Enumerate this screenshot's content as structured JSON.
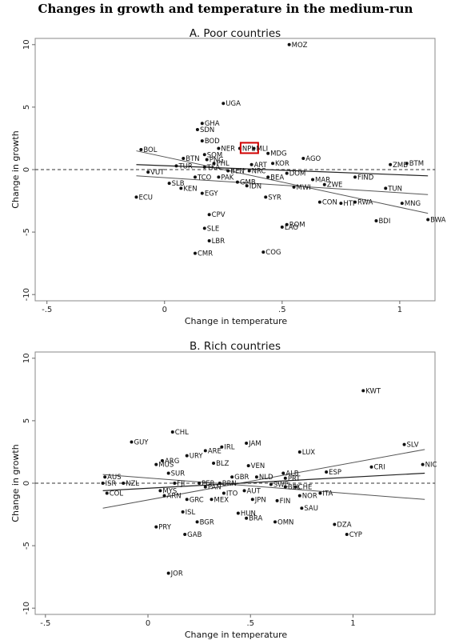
{
  "figure_title": "Changes in growth and temperature in the medium-run",
  "colors": {
    "highlight": "#d00000",
    "frame": "#888888",
    "points": "#111111",
    "fit_line": "#555555"
  },
  "chart_data": [
    {
      "type": "scatter",
      "title": "A. Poor countries",
      "xlabel": "Change in temperature",
      "ylabel": "Change in growth",
      "xlim": [
        -0.55,
        1.15
      ],
      "ylim": [
        -10.5,
        10.5
      ],
      "xticks": [
        -0.5,
        0,
        0.5,
        1
      ],
      "xtick_labels": [
        "-.5",
        "0",
        ".5",
        "1"
      ],
      "yticks": [
        10,
        5,
        0,
        -5,
        -10
      ],
      "highlight": "NPL",
      "fit_lines": [
        {
          "x": [
            -0.12,
            1.12
          ],
          "y": [
            1.5,
            -3.5
          ]
        },
        {
          "x": [
            -0.12,
            1.12
          ],
          "y": [
            0.4,
            -0.5
          ]
        },
        {
          "x": [
            -0.12,
            1.12
          ],
          "y": [
            -0.5,
            -2.0
          ]
        }
      ],
      "points": [
        {
          "label": "MOZ",
          "x": 0.53,
          "y": 10.0
        },
        {
          "label": "UGA",
          "x": 0.25,
          "y": 5.3
        },
        {
          "label": "GHA",
          "x": 0.16,
          "y": 3.7
        },
        {
          "label": "SDN",
          "x": 0.14,
          "y": 3.2
        },
        {
          "label": "BOD",
          "x": 0.16,
          "y": 2.3
        },
        {
          "label": "NER",
          "x": 0.23,
          "y": 1.7
        },
        {
          "label": "NPL",
          "x": 0.32,
          "y": 1.7
        },
        {
          "label": "MLI",
          "x": 0.38,
          "y": 1.7
        },
        {
          "label": "BOL",
          "x": -0.1,
          "y": 1.6
        },
        {
          "label": "MDG",
          "x": 0.44,
          "y": 1.3
        },
        {
          "label": "SOM",
          "x": 0.17,
          "y": 1.2
        },
        {
          "label": "AGO",
          "x": 0.59,
          "y": 0.9
        },
        {
          "label": "BTN",
          "x": 0.08,
          "y": 0.9
        },
        {
          "label": "PNG",
          "x": 0.18,
          "y": 0.8
        },
        {
          "label": "PHL",
          "x": 0.21,
          "y": 0.5
        },
        {
          "label": "ART",
          "x": 0.37,
          "y": 0.4
        },
        {
          "label": "KOR",
          "x": 0.46,
          "y": 0.5
        },
        {
          "label": "TUR",
          "x": 0.05,
          "y": 0.3
        },
        {
          "label": "ZMB",
          "x": 0.96,
          "y": 0.4
        },
        {
          "label": "BTM",
          "x": 1.03,
          "y": 0.5
        },
        {
          "label": "TKA",
          "x": 0.17,
          "y": 0.2
        },
        {
          "label": "VUT",
          "x": -0.07,
          "y": -0.2
        },
        {
          "label": "BEN",
          "x": 0.27,
          "y": -0.1
        },
        {
          "label": "NRC",
          "x": 0.36,
          "y": -0.1
        },
        {
          "label": "DOM",
          "x": 0.52,
          "y": -0.3
        },
        {
          "label": "TCO",
          "x": 0.13,
          "y": -0.6
        },
        {
          "label": "PAK",
          "x": 0.23,
          "y": -0.6
        },
        {
          "label": "BEA",
          "x": 0.44,
          "y": -0.6
        },
        {
          "label": "FIND",
          "x": 0.81,
          "y": -0.6
        },
        {
          "label": "GMB",
          "x": 0.31,
          "y": -1.0
        },
        {
          "label": "IDN",
          "x": 0.35,
          "y": -1.3
        },
        {
          "label": "MAR",
          "x": 0.63,
          "y": -0.8
        },
        {
          "label": "ZWE",
          "x": 0.68,
          "y": -1.2
        },
        {
          "label": "MWI",
          "x": 0.55,
          "y": -1.4
        },
        {
          "label": "TUN",
          "x": 0.94,
          "y": -1.5
        },
        {
          "label": "SLB",
          "x": 0.02,
          "y": -1.1
        },
        {
          "label": "KEN",
          "x": 0.07,
          "y": -1.5
        },
        {
          "label": "EGY",
          "x": 0.16,
          "y": -1.9
        },
        {
          "label": "SYR",
          "x": 0.43,
          "y": -2.2
        },
        {
          "label": "ECU",
          "x": -0.12,
          "y": -2.2
        },
        {
          "label": "CON",
          "x": 0.66,
          "y": -2.6
        },
        {
          "label": "HTI",
          "x": 0.75,
          "y": -2.7
        },
        {
          "label": "RWA",
          "x": 0.81,
          "y": -2.6
        },
        {
          "label": "MNG",
          "x": 1.01,
          "y": -2.7
        },
        {
          "label": "CPV",
          "x": 0.19,
          "y": -3.6
        },
        {
          "label": "BDI",
          "x": 0.9,
          "y": -4.1
        },
        {
          "label": "BWA",
          "x": 1.12,
          "y": -4.0
        },
        {
          "label": "SLE",
          "x": 0.17,
          "y": -4.7
        },
        {
          "label": "ROM",
          "x": 0.52,
          "y": -4.4
        },
        {
          "label": "LAO",
          "x": 0.5,
          "y": -4.6
        },
        {
          "label": "LBR",
          "x": 0.19,
          "y": -5.7
        },
        {
          "label": "CMR",
          "x": 0.13,
          "y": -6.7
        },
        {
          "label": "COG",
          "x": 0.42,
          "y": -6.6
        }
      ]
    },
    {
      "type": "scatter",
      "title": "B. Rich countries",
      "xlabel": "Change in temperature",
      "ylabel": "Change in growth",
      "xlim": [
        -0.55,
        1.4
      ],
      "ylim": [
        -10.5,
        10.5
      ],
      "xticks": [
        -0.5,
        0,
        0.5,
        1
      ],
      "xtick_labels": [
        "-.5",
        "0",
        ".5",
        "1"
      ],
      "yticks": [
        10,
        5,
        0,
        -5,
        -10
      ],
      "fit_lines": [
        {
          "x": [
            -0.22,
            1.35
          ],
          "y": [
            -2.0,
            2.7
          ]
        },
        {
          "x": [
            -0.22,
            1.35
          ],
          "y": [
            -0.6,
            0.8
          ]
        },
        {
          "x": [
            -0.22,
            1.35
          ],
          "y": [
            0.7,
            -1.3
          ]
        }
      ],
      "points": [
        {
          "label": "KWT",
          "x": 1.05,
          "y": 7.4
        },
        {
          "label": "CHL",
          "x": 0.12,
          "y": 4.1
        },
        {
          "label": "GUY",
          "x": -0.08,
          "y": 3.3
        },
        {
          "label": "JAM",
          "x": 0.48,
          "y": 3.2
        },
        {
          "label": "SLV",
          "x": 1.25,
          "y": 3.1
        },
        {
          "label": "IRL",
          "x": 0.36,
          "y": 2.9
        },
        {
          "label": "ARE",
          "x": 0.28,
          "y": 2.6
        },
        {
          "label": "LUX",
          "x": 0.74,
          "y": 2.5
        },
        {
          "label": "URY",
          "x": 0.19,
          "y": 2.2
        },
        {
          "label": "ARG",
          "x": 0.07,
          "y": 1.8
        },
        {
          "label": "MUS",
          "x": 0.04,
          "y": 1.5
        },
        {
          "label": "BLZ",
          "x": 0.32,
          "y": 1.6
        },
        {
          "label": "VEN",
          "x": 0.49,
          "y": 1.4
        },
        {
          "label": "NIC",
          "x": 1.34,
          "y": 1.5
        },
        {
          "label": "CRI",
          "x": 1.09,
          "y": 1.3
        },
        {
          "label": "SUR",
          "x": 0.1,
          "y": 0.8
        },
        {
          "label": "ESP",
          "x": 0.87,
          "y": 0.9
        },
        {
          "label": "ALB",
          "x": 0.66,
          "y": 0.8
        },
        {
          "label": "AUS",
          "x": -0.21,
          "y": 0.5
        },
        {
          "label": "GBR",
          "x": 0.41,
          "y": 0.5
        },
        {
          "label": "NLD",
          "x": 0.53,
          "y": 0.5
        },
        {
          "label": "PRT",
          "x": 0.67,
          "y": 0.4
        },
        {
          "label": "ISR",
          "x": -0.22,
          "y": 0.0
        },
        {
          "label": "NZL",
          "x": -0.12,
          "y": 0.0
        },
        {
          "label": "FJI",
          "x": 0.13,
          "y": 0.0
        },
        {
          "label": "PER",
          "x": 0.25,
          "y": 0.0
        },
        {
          "label": "BRN",
          "x": 0.35,
          "y": 0.0
        },
        {
          "label": "SWE",
          "x": 0.6,
          "y": -0.1
        },
        {
          "label": "BEL",
          "x": 0.67,
          "y": -0.3
        },
        {
          "label": "CHE",
          "x": 0.72,
          "y": -0.3
        },
        {
          "label": "COL",
          "x": -0.2,
          "y": -0.8
        },
        {
          "label": "MYS",
          "x": 0.06,
          "y": -0.6
        },
        {
          "label": "PAN",
          "x": 0.28,
          "y": -0.3
        },
        {
          "label": "ITO",
          "x": 0.37,
          "y": -0.8
        },
        {
          "label": "AUT",
          "x": 0.47,
          "y": -0.6
        },
        {
          "label": "ITA",
          "x": 0.84,
          "y": -0.8
        },
        {
          "label": "NOR",
          "x": 0.74,
          "y": -1.0
        },
        {
          "label": "ARN",
          "x": 0.08,
          "y": -1.0
        },
        {
          "label": "GRC",
          "x": 0.19,
          "y": -1.3
        },
        {
          "label": "MEX",
          "x": 0.31,
          "y": -1.3
        },
        {
          "label": "JPN",
          "x": 0.51,
          "y": -1.3
        },
        {
          "label": "FIN",
          "x": 0.63,
          "y": -1.4
        },
        {
          "label": "SAU",
          "x": 0.75,
          "y": -2.0
        },
        {
          "label": "ISL",
          "x": 0.17,
          "y": -2.3
        },
        {
          "label": "HUN",
          "x": 0.44,
          "y": -2.4
        },
        {
          "label": "BRA",
          "x": 0.48,
          "y": -2.8
        },
        {
          "label": "BGR",
          "x": 0.24,
          "y": -3.1
        },
        {
          "label": "OMN",
          "x": 0.62,
          "y": -3.1
        },
        {
          "label": "DZA",
          "x": 0.91,
          "y": -3.3
        },
        {
          "label": "PRY",
          "x": 0.04,
          "y": -3.5
        },
        {
          "label": "GAB",
          "x": 0.18,
          "y": -4.1
        },
        {
          "label": "CYP",
          "x": 0.97,
          "y": -4.1
        },
        {
          "label": "JOR",
          "x": 0.1,
          "y": -7.2
        }
      ]
    }
  ]
}
